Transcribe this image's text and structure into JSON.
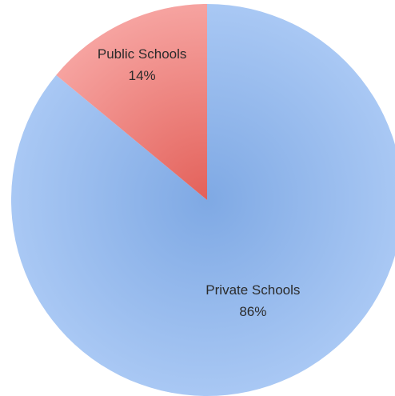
{
  "chart_data": {
    "type": "pie",
    "title": "",
    "slices": [
      {
        "label": "Private Schools",
        "percent_label": "86%",
        "value": 86,
        "color_light": "#a9c8f4",
        "color_dark": "#7fa9e4"
      },
      {
        "label": "Public Schools",
        "percent_label": "14%",
        "value": 14,
        "color_light": "#f6a3a0",
        "color_dark": "#e3615a"
      }
    ],
    "start_angle_deg": 0,
    "direction": "clockwise",
    "legend": "none",
    "data_labels": "inside"
  }
}
